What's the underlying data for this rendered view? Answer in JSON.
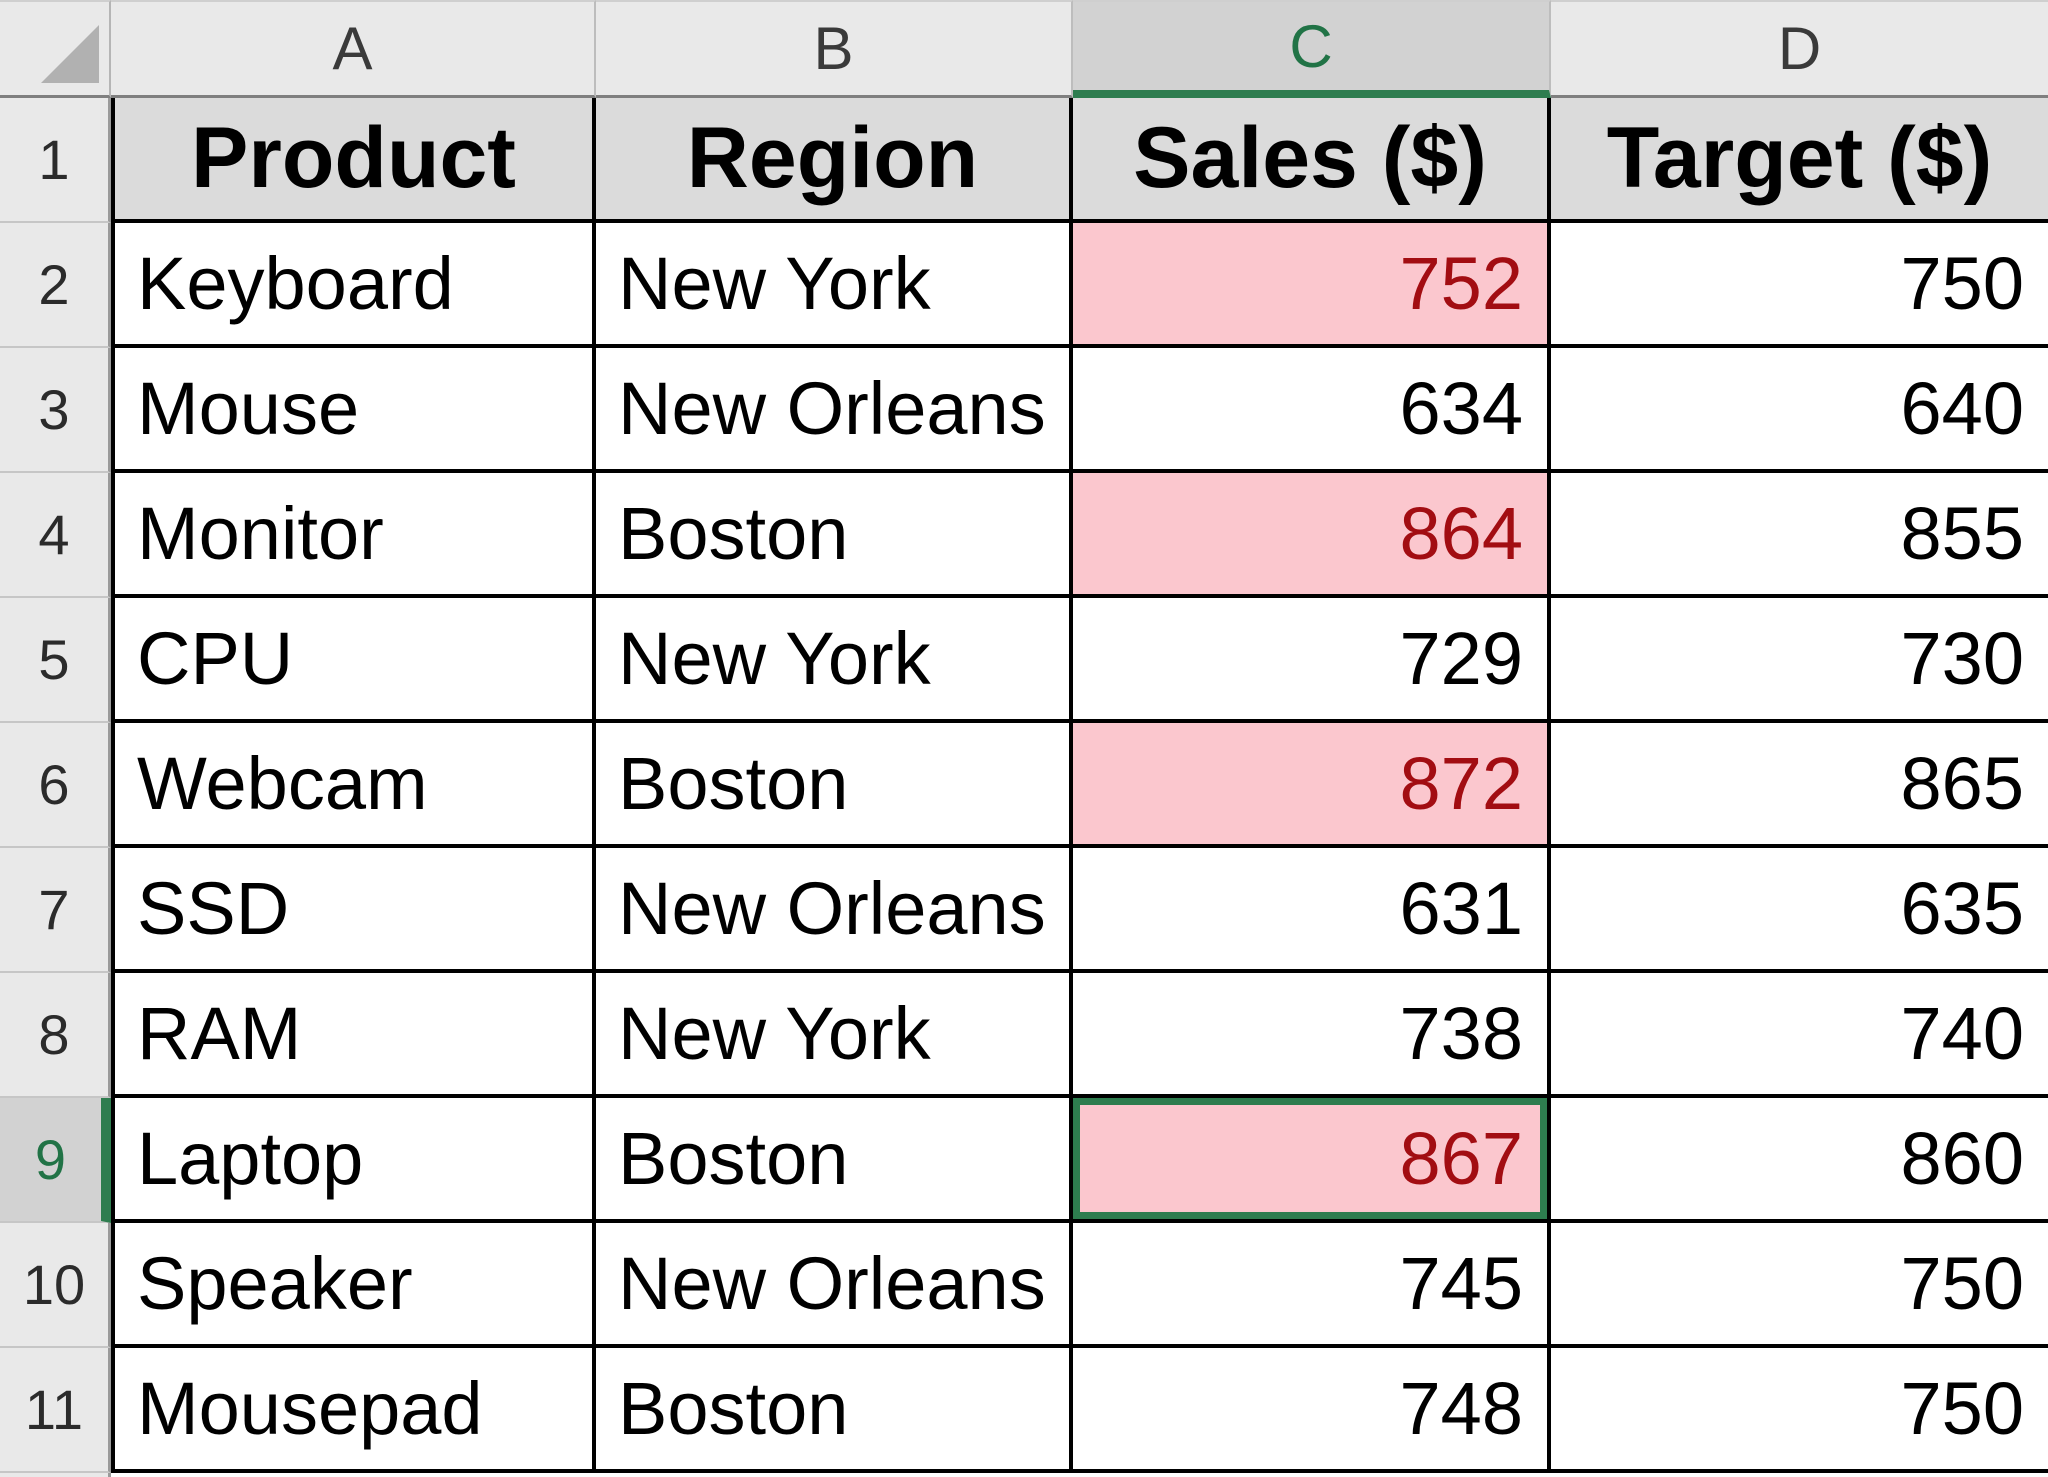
{
  "grid": {
    "column_letters": [
      "A",
      "B",
      "C",
      "D"
    ],
    "header_row": {
      "n": 1,
      "cells": [
        "Product",
        "Region",
        "Sales ($)",
        "Target ($)"
      ]
    },
    "data_rows": [
      {
        "n": 2,
        "cells": [
          "Keyboard",
          "New York",
          "752",
          "750"
        ],
        "sales_flagged": true
      },
      {
        "n": 3,
        "cells": [
          "Mouse",
          "New Orleans",
          "634",
          "640"
        ],
        "sales_flagged": false
      },
      {
        "n": 4,
        "cells": [
          "Monitor",
          "Boston",
          "864",
          "855"
        ],
        "sales_flagged": true
      },
      {
        "n": 5,
        "cells": [
          "CPU",
          "New York",
          "729",
          "730"
        ],
        "sales_flagged": false
      },
      {
        "n": 6,
        "cells": [
          "Webcam",
          "Boston",
          "872",
          "865"
        ],
        "sales_flagged": true
      },
      {
        "n": 7,
        "cells": [
          "SSD",
          "New Orleans",
          "631",
          "635"
        ],
        "sales_flagged": false
      },
      {
        "n": 8,
        "cells": [
          "RAM",
          "New York",
          "738",
          "740"
        ],
        "sales_flagged": false
      },
      {
        "n": 9,
        "cells": [
          "Laptop",
          "Boston",
          "867",
          "860"
        ],
        "sales_flagged": true
      },
      {
        "n": 10,
        "cells": [
          "Speaker",
          "New Orleans",
          "745",
          "750"
        ],
        "sales_flagged": false
      },
      {
        "n": 11,
        "cells": [
          "Mousepad",
          "Boston",
          "748",
          "750"
        ],
        "sales_flagged": false
      }
    ],
    "selection": {
      "cell": "C9",
      "column": "C",
      "row": 9,
      "fill_handle": true
    },
    "conditional_format": {
      "flagged_cells": [
        "C2",
        "C4",
        "C6",
        "C9"
      ],
      "fill": "#FBC7CE",
      "text": "#A20D12"
    },
    "colors": {
      "header_row_fill": "#DBDBDB",
      "frame_fill": "#E9E9E9",
      "frame_active_fill": "#D2D2D2",
      "accent_green_text": "#217346",
      "selection_green": "#2E7D4F",
      "grid_border_black": "#000000",
      "frame_border_gray": "#9A9A9A"
    }
  }
}
